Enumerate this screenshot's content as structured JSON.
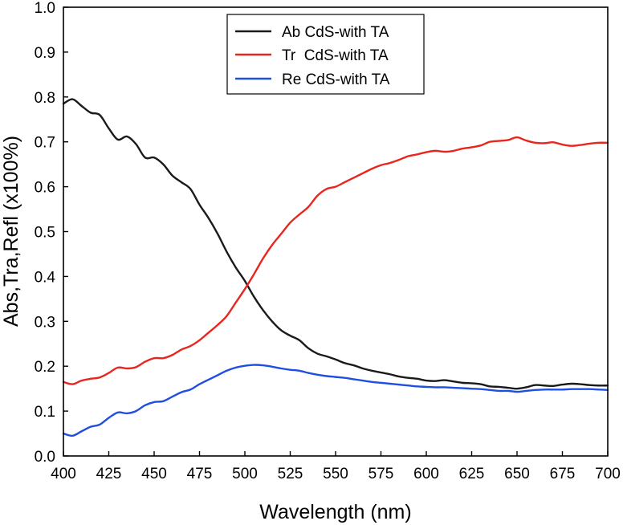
{
  "chart_data": {
    "type": "line",
    "title": "",
    "xlabel": "Wavelength (nm)",
    "ylabel": "Abs,Tra,Refl (x100%)",
    "xlim": [
      400,
      700
    ],
    "ylim": [
      0.0,
      1.0
    ],
    "xticks": [
      "400",
      "425",
      "450",
      "475",
      "500",
      "525",
      "550",
      "575",
      "600",
      "625",
      "650",
      "675",
      "700"
    ],
    "yticks": [
      "0.0",
      "0.1",
      "0.2",
      "0.3",
      "0.4",
      "0.5",
      "0.6",
      "0.7",
      "0.8",
      "0.9",
      "1.0"
    ],
    "grid": false,
    "legend_position": "top-center",
    "x": [
      400,
      405,
      410,
      415,
      420,
      425,
      430,
      435,
      440,
      445,
      450,
      455,
      460,
      465,
      470,
      475,
      480,
      485,
      490,
      495,
      500,
      505,
      510,
      515,
      520,
      525,
      530,
      535,
      540,
      545,
      550,
      555,
      560,
      565,
      570,
      575,
      580,
      585,
      590,
      595,
      600,
      605,
      610,
      615,
      620,
      625,
      630,
      635,
      640,
      645,
      650,
      655,
      660,
      665,
      670,
      675,
      680,
      685,
      690,
      695,
      700
    ],
    "series": [
      {
        "name": "Ab CdS-with TA",
        "color": "#1a1a1a",
        "values": [
          0.785,
          0.795,
          0.78,
          0.765,
          0.76,
          0.73,
          0.705,
          0.712,
          0.695,
          0.665,
          0.665,
          0.65,
          0.625,
          0.61,
          0.595,
          0.56,
          0.53,
          0.495,
          0.455,
          0.42,
          0.39,
          0.355,
          0.325,
          0.3,
          0.28,
          0.268,
          0.258,
          0.24,
          0.228,
          0.222,
          0.215,
          0.207,
          0.202,
          0.195,
          0.19,
          0.186,
          0.182,
          0.177,
          0.174,
          0.172,
          0.168,
          0.167,
          0.169,
          0.166,
          0.163,
          0.162,
          0.16,
          0.155,
          0.154,
          0.152,
          0.15,
          0.153,
          0.158,
          0.157,
          0.156,
          0.159,
          0.161,
          0.16,
          0.158,
          0.157,
          0.157
        ]
      },
      {
        "name": "Tr  CdS-with TA",
        "color": "#e8261f",
        "values": [
          0.165,
          0.16,
          0.168,
          0.172,
          0.175,
          0.185,
          0.197,
          0.195,
          0.198,
          0.21,
          0.218,
          0.218,
          0.225,
          0.237,
          0.245,
          0.258,
          0.275,
          0.292,
          0.312,
          0.342,
          0.372,
          0.405,
          0.44,
          0.47,
          0.495,
          0.52,
          0.538,
          0.555,
          0.58,
          0.595,
          0.6,
          0.61,
          0.62,
          0.63,
          0.64,
          0.648,
          0.653,
          0.66,
          0.668,
          0.672,
          0.677,
          0.68,
          0.678,
          0.68,
          0.685,
          0.688,
          0.692,
          0.7,
          0.702,
          0.704,
          0.71,
          0.703,
          0.698,
          0.697,
          0.699,
          0.694,
          0.691,
          0.693,
          0.696,
          0.698,
          0.698
        ]
      },
      {
        "name": "Re CdS-with TA",
        "color": "#1f4fe0",
        "values": [
          0.05,
          0.045,
          0.055,
          0.065,
          0.07,
          0.085,
          0.097,
          0.095,
          0.1,
          0.113,
          0.12,
          0.122,
          0.132,
          0.142,
          0.148,
          0.16,
          0.17,
          0.18,
          0.19,
          0.197,
          0.201,
          0.203,
          0.202,
          0.199,
          0.195,
          0.192,
          0.19,
          0.185,
          0.181,
          0.178,
          0.176,
          0.174,
          0.171,
          0.168,
          0.165,
          0.163,
          0.161,
          0.159,
          0.157,
          0.155,
          0.154,
          0.153,
          0.153,
          0.152,
          0.151,
          0.15,
          0.149,
          0.147,
          0.145,
          0.145,
          0.143,
          0.145,
          0.147,
          0.148,
          0.148,
          0.148,
          0.149,
          0.149,
          0.149,
          0.148,
          0.147
        ]
      }
    ]
  }
}
